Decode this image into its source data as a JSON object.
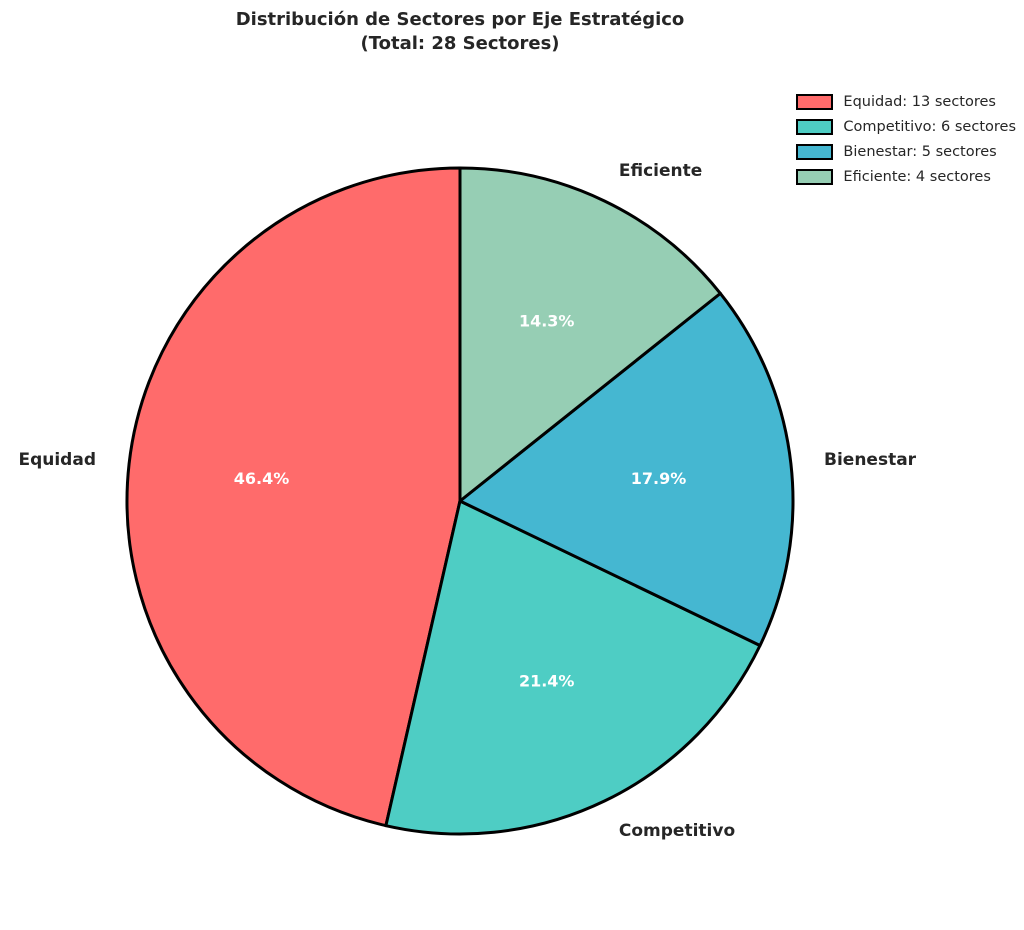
{
  "title": {
    "line1": "Distribución de Sectores por Eje Estratégico",
    "line2": "(Total: 28 Sectores)"
  },
  "chart_data": {
    "type": "pie",
    "title": "Distribución de Sectores por Eje Estratégico (Total: 28 Sectores)",
    "total": 28,
    "unit": "sectores",
    "slices": [
      {
        "label": "Equidad",
        "value": 13,
        "pct": "46.4%",
        "color": "#FF6B6B",
        "legend": "Equidad: 13 sectores"
      },
      {
        "label": "Competitivo",
        "value": 6,
        "pct": "21.4%",
        "color": "#4ECDC4",
        "legend": "Competitivo: 6 sectores"
      },
      {
        "label": "Bienestar",
        "value": 5,
        "pct": "17.9%",
        "color": "#45B7D1",
        "legend": "Bienestar: 5 sectores"
      },
      {
        "label": "Eficiente",
        "value": 4,
        "pct": "14.3%",
        "color": "#96CEB4",
        "legend": "Eficiente: 4 sectores"
      }
    ],
    "start_angle": 90,
    "counterclockwise": true,
    "label_distance": 1.1,
    "pct_distance": 0.6,
    "edge_color": "#000000",
    "edge_width": 3,
    "pct_color": "#ffffff",
    "label_color": "#262626",
    "legend_position": "upper right",
    "legend_frame": false,
    "background": "#ffffff"
  }
}
